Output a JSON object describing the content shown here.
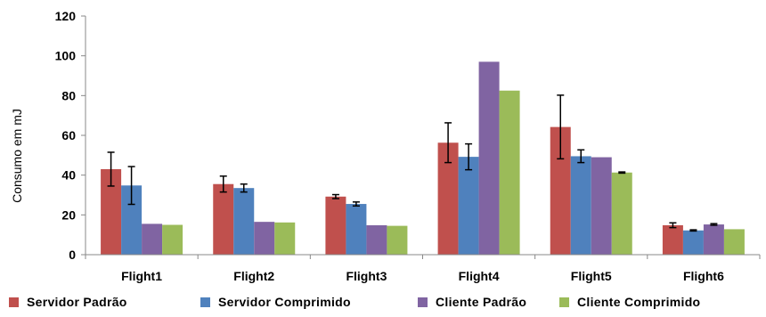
{
  "chart_data": {
    "type": "bar",
    "title": "",
    "xlabel": "",
    "ylabel": "Consumo em mJ",
    "ylim": [
      0,
      120
    ],
    "yticks": [
      0,
      20,
      40,
      60,
      80,
      100,
      120
    ],
    "grid": false,
    "legend": "bottom",
    "categories": [
      "Flight1",
      "Flight2",
      "Flight3",
      "Flight4",
      "Flight5",
      "Flight6"
    ],
    "series": [
      {
        "name": "Servidor Padrão",
        "color": "#C0504D",
        "values": [
          43,
          35.5,
          29.2,
          56.3,
          64.2,
          14.8
        ],
        "errors": [
          8.5,
          4,
          1,
          10,
          16,
          1.2
        ]
      },
      {
        "name": "Servidor Comprimido",
        "color": "#4F81BD",
        "values": [
          34.8,
          33.5,
          25.5,
          49.2,
          49.5,
          12.2
        ],
        "errors": [
          9.5,
          2,
          1,
          6.5,
          3.2,
          0.3
        ]
      },
      {
        "name": "Cliente Padrão",
        "color": "#8064A2",
        "values": [
          15.5,
          16.5,
          14.8,
          97,
          49,
          15.2
        ],
        "errors": [
          0,
          0,
          0,
          0,
          0,
          0.4
        ]
      },
      {
        "name": "Cliente Comprimido",
        "color": "#9BBB59",
        "values": [
          15,
          16.2,
          14.5,
          82.5,
          41.3,
          12.8
        ],
        "errors": [
          0,
          0,
          0,
          0,
          0.3,
          0
        ]
      }
    ]
  }
}
